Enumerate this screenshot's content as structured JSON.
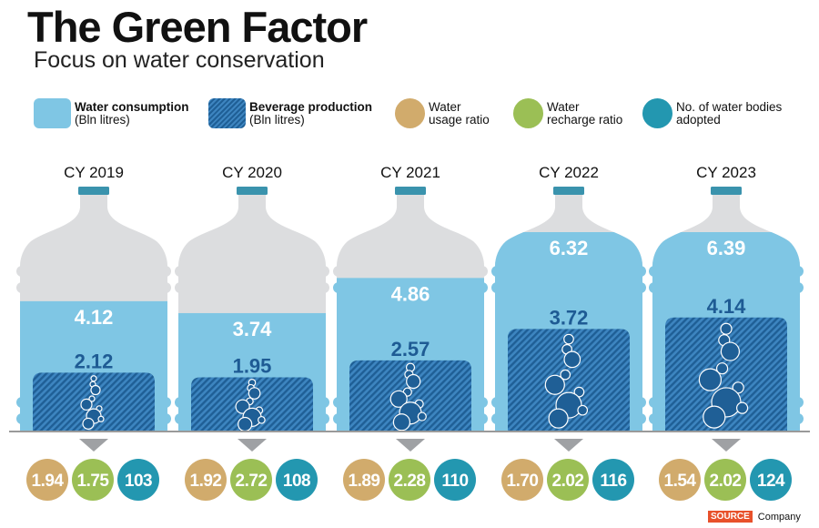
{
  "header": {
    "title": "The Green Factor",
    "subtitle": "Focus on water conservation"
  },
  "legend": [
    {
      "key": "water_consumption",
      "label": "Water consumption",
      "unit": "(Bln litres)",
      "color": "#7fc6e4",
      "style": "solid"
    },
    {
      "key": "beverage_production",
      "label": "Beverage production",
      "unit": "(Bln litres)",
      "color": "#2a6ea8",
      "style": "hatched"
    },
    {
      "key": "water_usage_ratio",
      "label_line1": "Water",
      "label_line2": "usage ratio",
      "color": "#d1ab6c"
    },
    {
      "key": "water_recharge_ratio",
      "label_line1": "Water",
      "label_line2": "recharge ratio",
      "color": "#9bbf55"
    },
    {
      "key": "water_bodies_adopted",
      "label_line1": "No. of water bodies",
      "label_line2": "adopted",
      "color": "#2397b0"
    }
  ],
  "colors": {
    "bottle_empty": "#dcdddf",
    "cap": "#3a93ad",
    "water": "#7fc6e4",
    "hatch_dark": "#1f5f96",
    "hatch_light": "#3d85c0",
    "label_dark": "#1e5b94",
    "ground": "#9a9a9a",
    "arrow": "#9fa1a4",
    "usage": "#d1ab6c",
    "recharge": "#9bbf55",
    "bodies": "#2397b0"
  },
  "chart_data": {
    "type": "bar",
    "title": "The Green Factor",
    "subtitle": "Focus on water conservation",
    "categories": [
      "CY 2019",
      "CY 2020",
      "CY 2021",
      "CY 2022",
      "CY 2023"
    ],
    "series": [
      {
        "name": "Water consumption (Bln litres)",
        "values": [
          4.12,
          3.74,
          4.86,
          6.32,
          6.39
        ]
      },
      {
        "name": "Beverage production (Bln litres)",
        "values": [
          2.12,
          1.95,
          2.57,
          3.72,
          4.14
        ]
      },
      {
        "name": "Water usage ratio",
        "values": [
          1.94,
          1.92,
          1.89,
          1.7,
          1.54
        ]
      },
      {
        "name": "Water recharge ratio",
        "values": [
          1.75,
          2.72,
          2.28,
          2.02,
          2.02
        ]
      },
      {
        "name": "No. of water bodies adopted",
        "values": [
          103,
          108,
          110,
          116,
          124
        ]
      }
    ],
    "value_labels": {
      "consumption": [
        "4.12",
        "3.74",
        "4.86",
        "6.32",
        "6.39"
      ],
      "production": [
        "2.12",
        "1.95",
        "2.57",
        "3.72",
        "4.14"
      ],
      "usage": [
        "1.94",
        "1.92",
        "1.89",
        "1.70",
        "1.54"
      ],
      "recharge": [
        "1.75",
        "2.72",
        "2.28",
        "2.02",
        "2.02"
      ],
      "bodies": [
        "103",
        "108",
        "110",
        "116",
        "124"
      ]
    },
    "xlabel": "",
    "ylabel": "",
    "legend_position": "top"
  },
  "footer": {
    "source_tag": "SOURCE",
    "source_name": "Company"
  }
}
